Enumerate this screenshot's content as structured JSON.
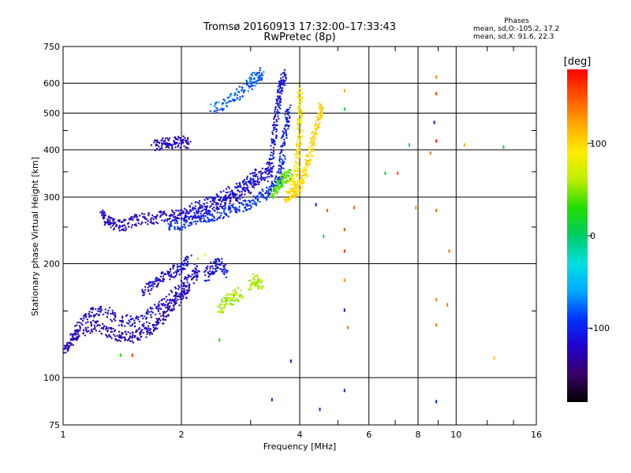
{
  "header": {
    "title": "Tromsø 20160913 17:32:00–17:33:43",
    "subtitle": "RwPretec (8p)"
  },
  "phase_stats": {
    "heading": "Phases",
    "line_o_label": "mean, sd,O:",
    "line_o_value": "-105.2, 17.2",
    "line_x_label": "mean, sd,X:",
    "line_x_value": "91.6, 22.3"
  },
  "colorbar": {
    "label": "[deg]",
    "ticks": [
      {
        "value": 100,
        "label": "100"
      },
      {
        "value": 0,
        "label": "0"
      },
      {
        "value": -100,
        "label": "-100"
      }
    ],
    "range": [
      -180,
      180
    ],
    "colors": [
      "#000000",
      "#3a0066",
      "#2200cc",
      "#0033ff",
      "#00aaff",
      "#00e0e0",
      "#00cc66",
      "#22dd00",
      "#bbee00",
      "#ffee00",
      "#ffaa00",
      "#ff5500",
      "#ff0000"
    ]
  },
  "chart_data": {
    "type": "scatter",
    "title": "Tromsø 20160913 17:32:00–17:33:43",
    "subtitle": "RwPretec (8p)",
    "xlabel": "Frequency [MHz]",
    "ylabel": "Stationary phase Virtual Height [km]",
    "xscale": "log",
    "yscale": "log",
    "xlim": [
      1,
      16
    ],
    "ylim": [
      75,
      750
    ],
    "xticks": [
      1,
      2,
      4,
      6,
      8,
      10,
      16
    ],
    "xtick_labels": [
      "1",
      "2",
      "4",
      "6",
      "8",
      "10",
      "16"
    ],
    "yticks": [
      75,
      100,
      200,
      300,
      400,
      500,
      600,
      750
    ],
    "ytick_labels": [
      "75",
      "100",
      "200",
      "300",
      "400",
      "500",
      "600",
      "750"
    ],
    "grid": true,
    "color_label": "[deg]",
    "traces": [
      {
        "points": [
          [
            1.0,
            118
          ],
          [
            1.05,
            125
          ],
          [
            1.1,
            132
          ],
          [
            1.2,
            138
          ],
          [
            1.3,
            133
          ],
          [
            1.4,
            128
          ],
          [
            1.5,
            128
          ],
          [
            1.6,
            132
          ],
          [
            1.7,
            136
          ],
          [
            1.8,
            145
          ],
          [
            1.9,
            155
          ],
          [
            2.0,
            165
          ],
          [
            2.1,
            170
          ]
        ],
        "phase": -125
      },
      {
        "points": [
          [
            1.05,
            130
          ],
          [
            1.15,
            145
          ],
          [
            1.25,
            152
          ],
          [
            1.4,
            142
          ],
          [
            1.55,
            140
          ],
          [
            1.7,
            150
          ],
          [
            1.85,
            160
          ],
          [
            2.0,
            175
          ],
          [
            2.15,
            185
          ],
          [
            2.2,
            195
          ]
        ],
        "phase": -115
      },
      {
        "points": [
          [
            1.6,
            168
          ],
          [
            1.7,
            178
          ],
          [
            1.8,
            185
          ],
          [
            1.9,
            190
          ],
          [
            2.0,
            195
          ],
          [
            2.1,
            205
          ]
        ],
        "phase": -115
      },
      {
        "points": [
          [
            2.3,
            185
          ],
          [
            2.4,
            195
          ],
          [
            2.5,
            200
          ],
          [
            2.6,
            190
          ]
        ],
        "phase": -110
      },
      {
        "points": [
          [
            1.25,
            268
          ],
          [
            1.3,
            258
          ],
          [
            1.35,
            253
          ],
          [
            1.45,
            253
          ],
          [
            1.55,
            262
          ],
          [
            1.7,
            264
          ],
          [
            1.85,
            268
          ],
          [
            2.0,
            268
          ],
          [
            2.2,
            272
          ],
          [
            2.4,
            280
          ],
          [
            2.6,
            290
          ],
          [
            2.8,
            305
          ],
          [
            3.0,
            320
          ],
          [
            3.2,
            340
          ],
          [
            3.35,
            360
          ]
        ],
        "phase": -120
      },
      {
        "points": [
          [
            1.85,
            250
          ],
          [
            2.0,
            255
          ],
          [
            2.2,
            262
          ],
          [
            2.4,
            268
          ],
          [
            2.6,
            275
          ],
          [
            2.8,
            283
          ],
          [
            3.0,
            290
          ],
          [
            3.2,
            300
          ],
          [
            3.4,
            315
          ],
          [
            3.55,
            335
          ]
        ],
        "phase": -95
      },
      {
        "points": [
          [
            2.0,
            270
          ],
          [
            2.2,
            282
          ],
          [
            2.4,
            295
          ],
          [
            2.6,
            305
          ],
          [
            2.8,
            318
          ],
          [
            3.0,
            330
          ],
          [
            3.1,
            345
          ]
        ],
        "phase": -110
      },
      {
        "points": [
          [
            3.35,
            330
          ],
          [
            3.4,
            380
          ],
          [
            3.45,
            440
          ],
          [
            3.5,
            500
          ],
          [
            3.55,
            560
          ],
          [
            3.6,
            600
          ],
          [
            3.65,
            630
          ]
        ],
        "phase": -110
      },
      {
        "points": [
          [
            3.55,
            330
          ],
          [
            3.6,
            370
          ],
          [
            3.65,
            420
          ],
          [
            3.7,
            470
          ],
          [
            3.75,
            520
          ]
        ],
        "phase": -100
      },
      {
        "points": [
          [
            2.4,
            510
          ],
          [
            2.6,
            530
          ],
          [
            2.8,
            560
          ],
          [
            3.0,
            600
          ],
          [
            3.1,
            625
          ],
          [
            3.2,
            640
          ]
        ],
        "phase": -80
      },
      {
        "points": [
          [
            1.7,
            410
          ],
          [
            1.8,
            415
          ],
          [
            1.9,
            418
          ],
          [
            2.0,
            420
          ],
          [
            2.1,
            412
          ]
        ],
        "phase": -120
      },
      {
        "points": [
          [
            3.4,
            305
          ],
          [
            3.5,
            320
          ],
          [
            3.6,
            330
          ],
          [
            3.7,
            340
          ],
          [
            3.8,
            345
          ]
        ],
        "phase": 40
      },
      {
        "points": [
          [
            3.7,
            300
          ],
          [
            3.8,
            305
          ],
          [
            3.9,
            310
          ],
          [
            4.0,
            320
          ],
          [
            4.1,
            340
          ],
          [
            4.2,
            370
          ],
          [
            4.3,
            410
          ],
          [
            4.4,
            450
          ],
          [
            4.5,
            490
          ],
          [
            4.55,
            520
          ]
        ],
        "phase": 100
      },
      {
        "points": [
          [
            3.8,
            320
          ],
          [
            3.9,
            340
          ],
          [
            3.95,
            380
          ],
          [
            4.0,
            430
          ],
          [
            4.0,
            480
          ],
          [
            4.0,
            530
          ],
          [
            4.0,
            580
          ]
        ],
        "phase": 90
      },
      {
        "points": [
          [
            2.5,
            150
          ],
          [
            2.6,
            160
          ],
          [
            2.7,
            162
          ],
          [
            2.85,
            168
          ]
        ],
        "phase": 55
      },
      {
        "points": [
          [
            3.0,
            175
          ],
          [
            3.1,
            182
          ],
          [
            3.2,
            175
          ]
        ],
        "phase": 60
      }
    ],
    "scatter": [
      {
        "x": 1.4,
        "y": 114,
        "phase": 30
      },
      {
        "x": 1.5,
        "y": 114,
        "phase": 160
      },
      {
        "x": 2.2,
        "y": 205,
        "phase": 60
      },
      {
        "x": 2.3,
        "y": 210,
        "phase": 90
      },
      {
        "x": 2.5,
        "y": 125,
        "phase": 20
      },
      {
        "x": 3.4,
        "y": 87,
        "phase": -100
      },
      {
        "x": 3.8,
        "y": 110,
        "phase": -100
      },
      {
        "x": 4.4,
        "y": 285,
        "phase": -100
      },
      {
        "x": 4.5,
        "y": 82,
        "phase": -100
      },
      {
        "x": 4.6,
        "y": 235,
        "phase": 10
      },
      {
        "x": 4.7,
        "y": 275,
        "phase": 150
      },
      {
        "x": 5.2,
        "y": 92,
        "phase": -100
      },
      {
        "x": 5.2,
        "y": 150,
        "phase": -110
      },
      {
        "x": 5.2,
        "y": 180,
        "phase": 130
      },
      {
        "x": 5.2,
        "y": 215,
        "phase": 160
      },
      {
        "x": 5.2,
        "y": 245,
        "phase": 150
      },
      {
        "x": 5.2,
        "y": 510,
        "phase": 10
      },
      {
        "x": 5.2,
        "y": 570,
        "phase": 120
      },
      {
        "x": 5.3,
        "y": 135,
        "phase": 140
      },
      {
        "x": 5.5,
        "y": 280,
        "phase": 150
      },
      {
        "x": 6.6,
        "y": 345,
        "phase": 10
      },
      {
        "x": 7.1,
        "y": 345,
        "phase": 150
      },
      {
        "x": 7.6,
        "y": 410,
        "phase": 10
      },
      {
        "x": 7.9,
        "y": 280,
        "phase": 130
      },
      {
        "x": 8.6,
        "y": 390,
        "phase": 140
      },
      {
        "x": 8.8,
        "y": 470,
        "phase": -110
      },
      {
        "x": 8.9,
        "y": 560,
        "phase": 160
      },
      {
        "x": 8.9,
        "y": 620,
        "phase": 130
      },
      {
        "x": 8.9,
        "y": 420,
        "phase": 170
      },
      {
        "x": 8.9,
        "y": 275,
        "phase": 140
      },
      {
        "x": 8.9,
        "y": 160,
        "phase": 130
      },
      {
        "x": 8.9,
        "y": 137,
        "phase": 140
      },
      {
        "x": 8.9,
        "y": 86,
        "phase": -100
      },
      {
        "x": 9.5,
        "y": 155,
        "phase": 140
      },
      {
        "x": 9.6,
        "y": 215,
        "phase": 140
      },
      {
        "x": 10.5,
        "y": 410,
        "phase": 120
      },
      {
        "x": 12.5,
        "y": 112,
        "phase": 110
      },
      {
        "x": 13.2,
        "y": 405,
        "phase": 10
      }
    ]
  }
}
